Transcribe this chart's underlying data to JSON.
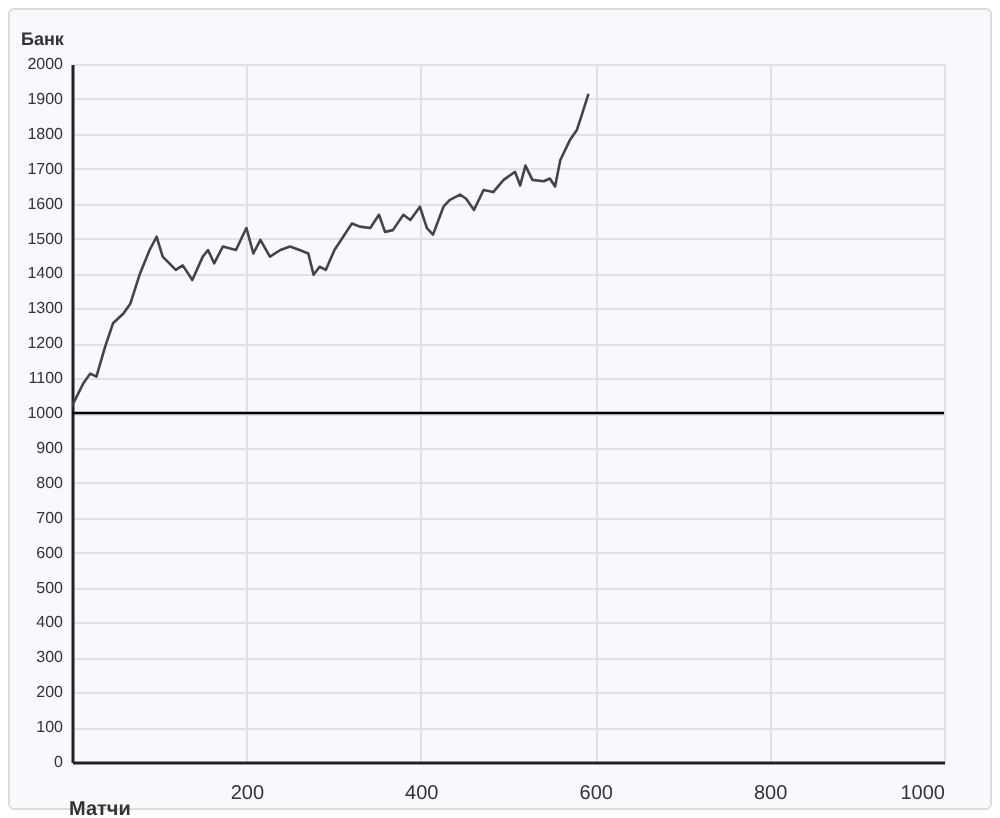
{
  "chart_data": {
    "type": "line",
    "xlabel": "Матчи",
    "ylabel": "Банк",
    "x": [
      0,
      13,
      21,
      28,
      38,
      47,
      59,
      67,
      78,
      89,
      97,
      104,
      119,
      127,
      138,
      150,
      156,
      163,
      173,
      188,
      200,
      208,
      216,
      227,
      239,
      250,
      261,
      271,
      277,
      284,
      291,
      301,
      311,
      321,
      330,
      342,
      352,
      359,
      368,
      380,
      388,
      399,
      407,
      414,
      426,
      433,
      445,
      452,
      461,
      472,
      483,
      495,
      508,
      514,
      520,
      528,
      541,
      548,
      554,
      560,
      571,
      579,
      584,
      592
    ],
    "series": [
      {
        "color": "#444444",
        "values": [
          1020,
          1085,
          1113,
          1104,
          1190,
          1257,
          1285,
          1314,
          1400,
          1467,
          1505,
          1448,
          1410,
          1423,
          1381,
          1448,
          1467,
          1429,
          1477,
          1467,
          1530,
          1457,
          1496,
          1448,
          1467,
          1477,
          1467,
          1457,
          1396,
          1419,
          1410,
          1467,
          1505,
          1543,
          1534,
          1530,
          1568,
          1519,
          1524,
          1568,
          1553,
          1591,
          1530,
          1511,
          1591,
          1610,
          1626,
          1614,
          1582,
          1639,
          1633,
          1668,
          1691,
          1652,
          1709,
          1668,
          1664,
          1672,
          1649,
          1725,
          1782,
          1811,
          1849,
          1912
        ]
      }
    ],
    "xlim": [
      0,
      1000
    ],
    "xticks": [
      {
        "value": 0,
        "label": null
      },
      200,
      400,
      600,
      800,
      1000
    ],
    "ylim": [
      0,
      2000
    ],
    "yticks": [
      0,
      100,
      200,
      300,
      400,
      500,
      600,
      700,
      800,
      900,
      1000,
      1100,
      1200,
      1300,
      1400,
      1500,
      1600,
      1700,
      1800,
      1900,
      2000
    ],
    "ref_lines": [
      {
        "axis": "y",
        "value": 1000,
        "color": "#000000"
      }
    ],
    "grid": true,
    "legend": false,
    "marker": "none",
    "line_style": "solid"
  }
}
